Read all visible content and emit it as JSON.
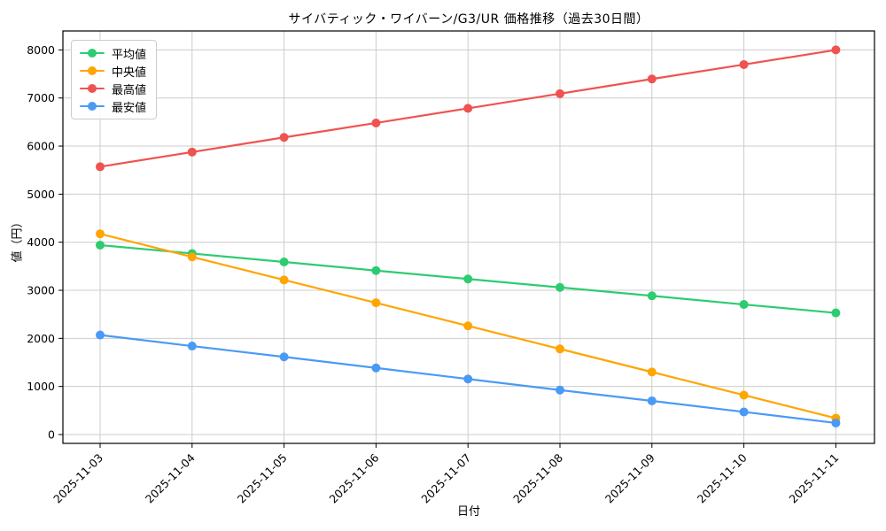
{
  "window": {
    "kind": "chart-figure"
  },
  "chart_data": {
    "type": "line",
    "title": "サイバティック・ワイバーン/G3/UR 価格推移（過去30日間）",
    "xlabel": "日付",
    "ylabel": "値（円）",
    "categories": [
      "2025-11-03",
      "2025-11-04",
      "2025-11-05",
      "2025-11-06",
      "2025-11-07",
      "2025-11-08",
      "2025-11-09",
      "2025-11-10",
      "2025-11-11"
    ],
    "series": [
      {
        "name": "平均値",
        "color": "#2ecc71",
        "values": [
          3940,
          3765,
          3590,
          3410,
          3235,
          3060,
          2885,
          2705,
          2530
        ]
      },
      {
        "name": "中央値",
        "color": "#ffa500",
        "values": [
          4175,
          3695,
          3215,
          2740,
          2260,
          1780,
          1300,
          820,
          340
        ]
      },
      {
        "name": "最高値",
        "color": "#ef5350",
        "values": [
          5570,
          5875,
          6180,
          6480,
          6785,
          7090,
          7395,
          7695,
          8000
        ]
      },
      {
        "name": "最安値",
        "color": "#4a9af5",
        "values": [
          2070,
          1840,
          1615,
          1385,
          1155,
          925,
          700,
          470,
          240
        ]
      }
    ],
    "ylim": [
      0,
      8000
    ],
    "y_ticks": [
      0,
      1000,
      2000,
      3000,
      4000,
      5000,
      6000,
      7000,
      8000
    ],
    "x_tick_rotation_deg": 45,
    "grid": true,
    "grid_color": "#cccccc",
    "spine_color": "#000000",
    "background": "#ffffff",
    "legend_position": "upper left",
    "marker": "circle"
  }
}
